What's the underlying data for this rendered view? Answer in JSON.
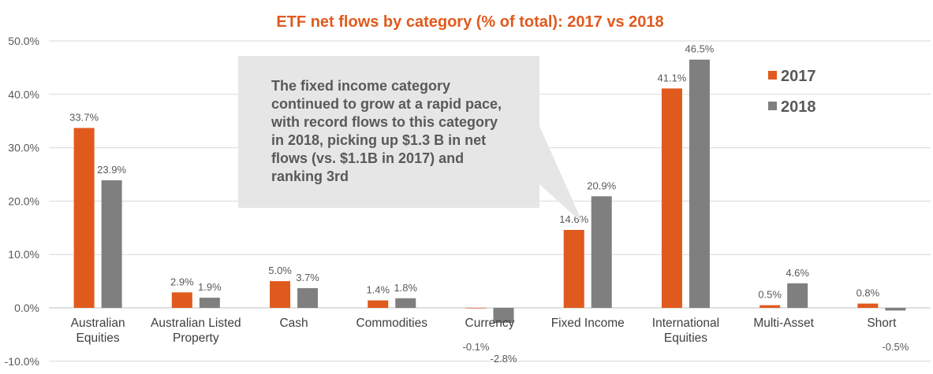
{
  "chart_data": {
    "type": "bar",
    "title": "ETF net flows by category (% of total): 2017 vs 2018",
    "xlabel": "",
    "ylabel": "",
    "ylim": [
      -10,
      50
    ],
    "yticks": [
      "-10.0%",
      "0.0%",
      "10.0%",
      "20.0%",
      "30.0%",
      "40.0%",
      "50.0%"
    ],
    "categories": [
      [
        "Australian",
        "Equities"
      ],
      [
        "Australian Listed",
        "Property"
      ],
      [
        "Cash"
      ],
      [
        "Commodities"
      ],
      [
        "Currency"
      ],
      [
        "Fixed Income"
      ],
      [
        "International",
        "Equities"
      ],
      [
        "Multi-Asset"
      ],
      [
        "Short"
      ]
    ],
    "series": [
      {
        "name": "2017",
        "color": "#e05a1e",
        "values": [
          33.7,
          2.9,
          5.0,
          1.4,
          -0.1,
          14.6,
          41.1,
          0.5,
          0.8
        ],
        "labels": [
          "33.7%",
          "2.9%",
          "5.0%",
          "1.4%",
          "-0.1%",
          "14.6%",
          "41.1%",
          "0.5%",
          "0.8%"
        ]
      },
      {
        "name": "2018",
        "color": "#7f7f7f",
        "values": [
          23.9,
          1.9,
          3.7,
          1.8,
          -2.8,
          20.9,
          46.5,
          4.6,
          -0.5
        ],
        "labels": [
          "23.9%",
          "1.9%",
          "3.7%",
          "1.8%",
          "-2.8%",
          "20.9%",
          "46.5%",
          "4.6%",
          "-0.5%"
        ]
      }
    ],
    "grid": true,
    "legend": "top-right",
    "annotation": {
      "lines": [
        "The fixed income category",
        "continued to grow at a rapid pace,",
        "with record flows to this category",
        "in 2018, picking up $1.3 B in net",
        "flows (vs. $1.1B in 2017) and",
        "ranking 3rd"
      ],
      "points_to": "Fixed Income",
      "fill": "#e6e6e6"
    }
  }
}
